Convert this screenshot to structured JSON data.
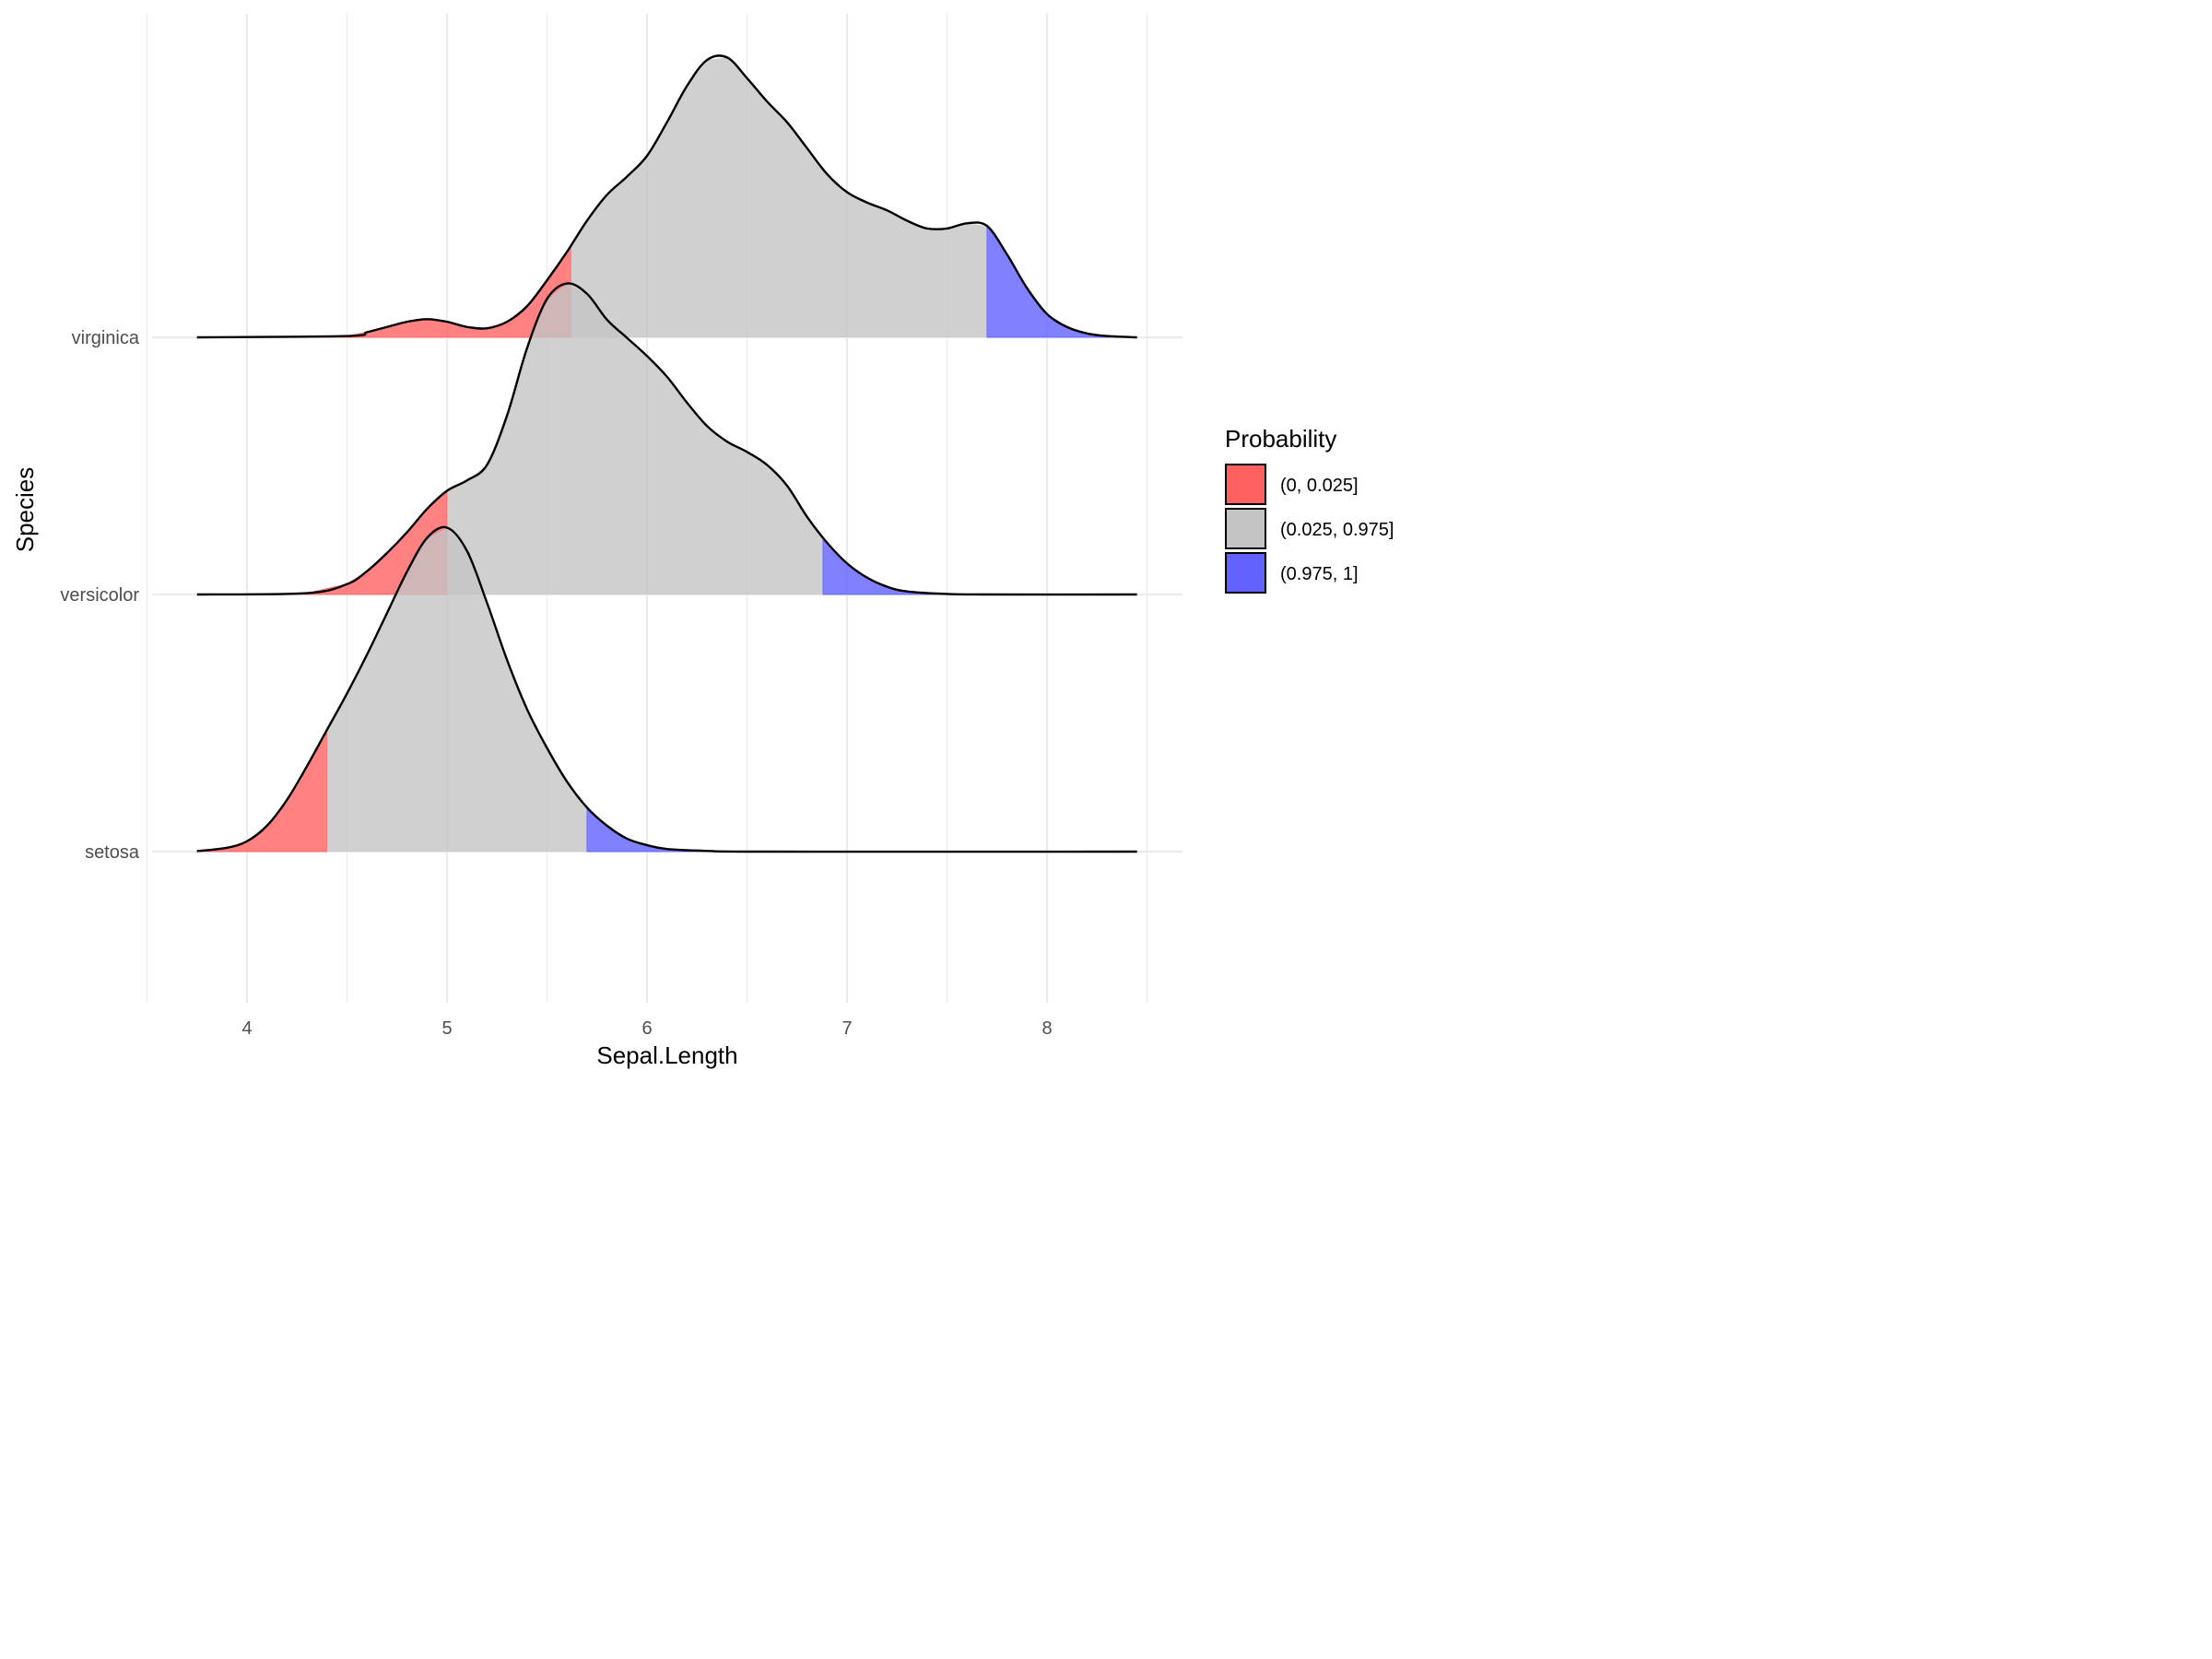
{
  "chart_data": {
    "type": "area",
    "subtype": "ridgeline density with quantile fills",
    "xlabel": "Sepal.Length",
    "ylabel": "Species",
    "xlim": [
      3.75,
      8.45
    ],
    "x_ticks": [
      4,
      5,
      6,
      7,
      8
    ],
    "grid": true,
    "categories": [
      "setosa",
      "versicolor",
      "virginica"
    ],
    "legend": {
      "title": "Probability",
      "placement": "right",
      "entries": [
        {
          "label": "(0, 0.025]",
          "color": "#ff6161"
        },
        {
          "label": "(0.025, 0.975]",
          "color": "#c4c4c4"
        },
        {
          "label": "(0.975, 1]",
          "color": "#6161ff"
        }
      ]
    },
    "ridge_scale": 1.26,
    "series": [
      {
        "name": "setosa",
        "quantiles": [
          4.4,
          5.7
        ],
        "x": [
          3.75,
          3.9,
          4.0,
          4.1,
          4.2,
          4.3,
          4.4,
          4.5,
          4.6,
          4.7,
          4.8,
          4.9,
          5.0,
          5.1,
          5.2,
          5.3,
          5.4,
          5.5,
          5.6,
          5.7,
          5.8,
          5.9,
          6.0,
          6.1,
          6.3,
          6.6,
          8.45
        ],
        "y": [
          0.002,
          0.015,
          0.04,
          0.1,
          0.2,
          0.33,
          0.47,
          0.61,
          0.76,
          0.92,
          1.08,
          1.21,
          1.25,
          1.16,
          0.96,
          0.74,
          0.55,
          0.4,
          0.27,
          0.17,
          0.1,
          0.05,
          0.025,
          0.01,
          0.003,
          0.0,
          0.0
        ]
      },
      {
        "name": "versicolor",
        "quantiles": [
          5.0,
          6.88
        ],
        "x": [
          3.75,
          4.3,
          4.5,
          4.6,
          4.7,
          4.8,
          4.9,
          5.0,
          5.1,
          5.2,
          5.3,
          5.4,
          5.5,
          5.6,
          5.7,
          5.8,
          5.9,
          6.0,
          6.1,
          6.2,
          6.3,
          6.4,
          6.5,
          6.6,
          6.7,
          6.8,
          6.9,
          7.0,
          7.1,
          7.2,
          7.3,
          7.5,
          7.7,
          8.45
        ],
        "y": [
          0.0,
          0.005,
          0.04,
          0.09,
          0.16,
          0.24,
          0.33,
          0.4,
          0.44,
          0.5,
          0.69,
          0.95,
          1.14,
          1.2,
          1.16,
          1.06,
          0.99,
          0.92,
          0.84,
          0.74,
          0.65,
          0.59,
          0.55,
          0.5,
          0.42,
          0.3,
          0.2,
          0.12,
          0.065,
          0.03,
          0.012,
          0.002,
          0.0,
          0.0
        ]
      },
      {
        "name": "virginica",
        "quantiles": [
          5.62,
          7.7
        ],
        "x": [
          3.75,
          4.5,
          4.6,
          4.7,
          4.8,
          4.9,
          5.0,
          5.1,
          5.2,
          5.3,
          5.4,
          5.5,
          5.6,
          5.7,
          5.8,
          5.9,
          6.0,
          6.1,
          6.2,
          6.3,
          6.4,
          6.5,
          6.6,
          6.7,
          6.8,
          6.9,
          7.0,
          7.1,
          7.2,
          7.3,
          7.4,
          7.5,
          7.6,
          7.7,
          7.8,
          7.9,
          8.0,
          8.1,
          8.2,
          8.3,
          8.45
        ],
        "y": [
          0.0,
          0.005,
          0.02,
          0.04,
          0.06,
          0.07,
          0.06,
          0.04,
          0.035,
          0.06,
          0.12,
          0.22,
          0.33,
          0.45,
          0.55,
          0.62,
          0.7,
          0.83,
          0.97,
          1.07,
          1.08,
          1.0,
          0.91,
          0.83,
          0.73,
          0.63,
          0.56,
          0.52,
          0.49,
          0.45,
          0.42,
          0.42,
          0.44,
          0.43,
          0.32,
          0.19,
          0.09,
          0.04,
          0.015,
          0.005,
          0.0
        ]
      }
    ]
  }
}
